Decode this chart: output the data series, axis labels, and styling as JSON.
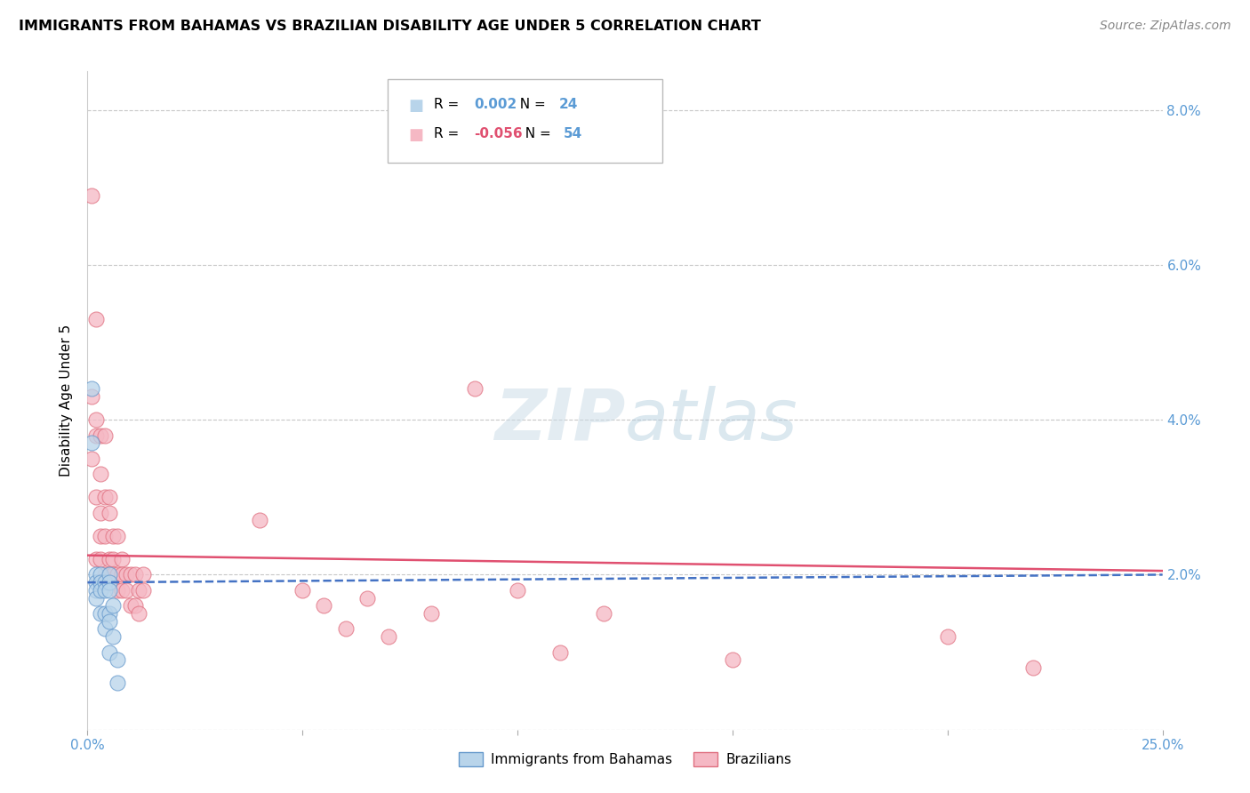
{
  "title": "IMMIGRANTS FROM BAHAMAS VS BRAZILIAN DISABILITY AGE UNDER 5 CORRELATION CHART",
  "source": "Source: ZipAtlas.com",
  "ylabel": "Disability Age Under 5",
  "x_min": 0.0,
  "x_max": 0.25,
  "y_min": 0.0,
  "y_max": 0.085,
  "x_ticks": [
    0.0,
    0.05,
    0.1,
    0.15,
    0.2,
    0.25
  ],
  "x_tick_labels": [
    "0.0%",
    "",
    "",
    "",
    "",
    "25.0%"
  ],
  "y_ticks": [
    0.0,
    0.02,
    0.04,
    0.06,
    0.08
  ],
  "y_tick_labels": [
    "",
    "2.0%",
    "4.0%",
    "6.0%",
    "8.0%"
  ],
  "legend_label_blue": "Immigrants from Bahamas",
  "legend_label_pink": "Brazilians",
  "R_blue": "0.002",
  "N_blue": "24",
  "R_pink": "-0.056",
  "N_pink": "54",
  "color_blue_fill": "#b8d4ea",
  "color_blue_edge": "#6699cc",
  "color_pink_fill": "#f5b8c4",
  "color_pink_edge": "#e07080",
  "color_line_blue": "#4472c4",
  "color_line_pink": "#e05070",
  "color_axis_blue": "#5b9bd5",
  "color_grid": "#c8c8c8",
  "blue_intercept": 0.019,
  "blue_slope": 0.004,
  "pink_intercept": 0.0225,
  "pink_slope": -0.008,
  "blue_x": [
    0.001,
    0.001,
    0.002,
    0.002,
    0.002,
    0.002,
    0.003,
    0.003,
    0.003,
    0.003,
    0.004,
    0.004,
    0.004,
    0.004,
    0.005,
    0.005,
    0.005,
    0.005,
    0.005,
    0.005,
    0.006,
    0.006,
    0.007,
    0.007
  ],
  "blue_y": [
    0.044,
    0.037,
    0.02,
    0.019,
    0.018,
    0.017,
    0.02,
    0.019,
    0.018,
    0.015,
    0.019,
    0.018,
    0.015,
    0.013,
    0.02,
    0.019,
    0.018,
    0.015,
    0.014,
    0.01,
    0.016,
    0.012,
    0.009,
    0.006
  ],
  "pink_x": [
    0.001,
    0.001,
    0.001,
    0.002,
    0.002,
    0.002,
    0.002,
    0.002,
    0.003,
    0.003,
    0.003,
    0.003,
    0.003,
    0.004,
    0.004,
    0.004,
    0.004,
    0.005,
    0.005,
    0.005,
    0.005,
    0.006,
    0.006,
    0.006,
    0.007,
    0.007,
    0.007,
    0.008,
    0.008,
    0.008,
    0.009,
    0.009,
    0.01,
    0.01,
    0.011,
    0.011,
    0.012,
    0.012,
    0.013,
    0.013,
    0.04,
    0.05,
    0.055,
    0.06,
    0.065,
    0.07,
    0.08,
    0.09,
    0.1,
    0.11,
    0.12,
    0.15,
    0.2,
    0.22
  ],
  "pink_y": [
    0.069,
    0.043,
    0.035,
    0.053,
    0.04,
    0.038,
    0.03,
    0.022,
    0.038,
    0.033,
    0.028,
    0.025,
    0.022,
    0.038,
    0.03,
    0.025,
    0.02,
    0.03,
    0.028,
    0.022,
    0.02,
    0.025,
    0.022,
    0.02,
    0.025,
    0.02,
    0.018,
    0.022,
    0.02,
    0.018,
    0.02,
    0.018,
    0.02,
    0.016,
    0.02,
    0.016,
    0.018,
    0.015,
    0.02,
    0.018,
    0.027,
    0.018,
    0.016,
    0.013,
    0.017,
    0.012,
    0.015,
    0.044,
    0.018,
    0.01,
    0.015,
    0.009,
    0.012,
    0.008
  ]
}
